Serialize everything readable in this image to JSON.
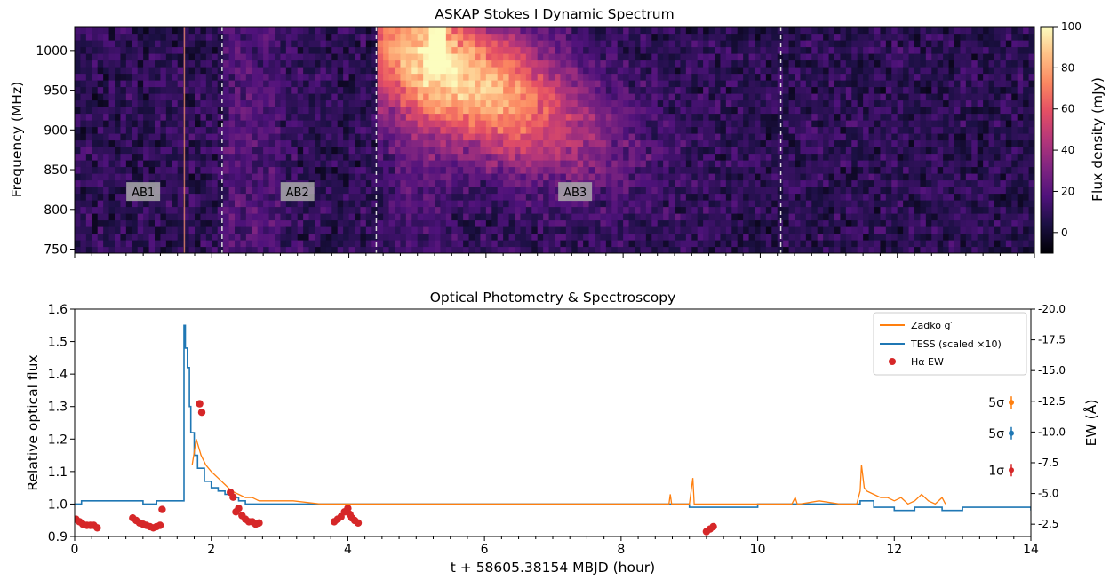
{
  "chart_data": [
    {
      "type": "heatmap",
      "title": "ASKAP Stokes I Dynamic Spectrum",
      "xlabel": "",
      "ylabel": "Frequency (MHz)",
      "xlim": [
        0,
        14
      ],
      "ylim": [
        745,
        1030
      ],
      "y_ticks": [
        750,
        800,
        850,
        900,
        950,
        1000
      ],
      "colorbar": {
        "label": "Flux density (mJy)",
        "range": [
          -10,
          100
        ],
        "ticks": [
          0,
          20,
          40,
          60,
          80,
          100
        ],
        "colormap": "magma"
      },
      "region_boundaries_hour": [
        2.15,
        4.4,
        10.3
      ],
      "bright_vertical_line_hour": 1.6,
      "region_labels": [
        {
          "label": "AB1",
          "x": 1.0,
          "freq": 822
        },
        {
          "label": "AB2",
          "x": 3.25,
          "freq": 822
        },
        {
          "label": "AB3",
          "x": 7.3,
          "freq": 822
        }
      ],
      "burst_description": "strong emission centered near 5.5 h and 1000 MHz, fading toward lower frequencies by 8-9 h"
    },
    {
      "type": "line",
      "title": "Optical Photometry & Spectroscopy",
      "xlabel": "t + 58605.38154 MBJD (hour)",
      "ylabel": "Relative optical flux",
      "y2label": "EW (Å)",
      "xlim": [
        0,
        14
      ],
      "ylim": [
        0.9,
        1.6
      ],
      "x_ticks": [
        0,
        2,
        4,
        6,
        8,
        10,
        12,
        14
      ],
      "y_ticks": [
        0.9,
        1.0,
        1.1,
        1.2,
        1.3,
        1.4,
        1.5,
        1.6
      ],
      "y2lim": [
        -1.5,
        -20.0
      ],
      "y2_ticks": [
        -2.5,
        -5.0,
        -7.5,
        -10.0,
        -12.5,
        -15.0,
        -17.5,
        -20.0
      ],
      "legend_position": "top-right",
      "series": [
        {
          "name": "Zadko g′",
          "color": "#ff7f0e",
          "style": "line",
          "x": [
            1.72,
            1.78,
            1.85,
            1.92,
            2.0,
            2.1,
            2.2,
            2.3,
            2.4,
            2.5,
            2.6,
            2.7,
            2.9,
            3.2,
            3.6,
            4.0,
            4.5,
            5.0,
            5.5,
            6.0,
            6.5,
            7.0,
            7.5,
            8.0,
            8.5,
            8.7,
            8.72,
            8.74,
            8.8,
            9.0,
            9.05,
            9.07,
            9.12,
            9.3,
            9.6,
            9.9,
            10.2,
            10.5,
            10.55,
            10.58,
            10.62,
            10.9,
            11.2,
            11.45,
            11.5,
            11.52,
            11.56,
            11.6,
            11.7,
            11.8,
            11.9,
            12.0,
            12.1,
            12.2,
            12.3,
            12.4,
            12.5,
            12.6,
            12.7,
            12.75
          ],
          "y": [
            1.12,
            1.2,
            1.15,
            1.12,
            1.1,
            1.08,
            1.06,
            1.04,
            1.03,
            1.02,
            1.02,
            1.01,
            1.01,
            1.01,
            1.0,
            1.0,
            1.0,
            1.0,
            1.0,
            1.0,
            1.0,
            1.0,
            1.0,
            1.0,
            1.0,
            1.0,
            1.03,
            1.0,
            1.0,
            1.0,
            1.08,
            1.0,
            1.0,
            1.0,
            1.0,
            1.0,
            1.0,
            1.0,
            1.02,
            1.0,
            1.0,
            1.01,
            1.0,
            1.0,
            1.04,
            1.12,
            1.05,
            1.04,
            1.03,
            1.02,
            1.02,
            1.01,
            1.02,
            1.0,
            1.01,
            1.03,
            1.01,
            1.0,
            1.02,
            1.0
          ]
        },
        {
          "name": "TESS (scaled ×10)",
          "color": "#1f77b4",
          "style": "step",
          "x": [
            0.0,
            0.1,
            0.3,
            0.5,
            0.8,
            1.0,
            1.2,
            1.4,
            1.58,
            1.6,
            1.62,
            1.65,
            1.68,
            1.7,
            1.75,
            1.8,
            1.9,
            2.0,
            2.1,
            2.2,
            2.3,
            2.4,
            2.5,
            2.6,
            2.8,
            3.0,
            3.5,
            4.0,
            5.0,
            6.0,
            7.0,
            8.0,
            9.0,
            10.0,
            11.0,
            11.5,
            11.7,
            12.0,
            12.3,
            12.7,
            13.0,
            13.5,
            14.0
          ],
          "y": [
            1.0,
            1.01,
            1.01,
            1.01,
            1.01,
            1.0,
            1.01,
            1.01,
            1.01,
            1.55,
            1.48,
            1.42,
            1.3,
            1.22,
            1.15,
            1.11,
            1.07,
            1.05,
            1.04,
            1.03,
            1.02,
            1.01,
            1.0,
            1.0,
            1.0,
            1.0,
            1.0,
            1.0,
            1.0,
            1.0,
            1.0,
            1.0,
            0.99,
            1.0,
            1.0,
            1.01,
            0.99,
            0.98,
            0.99,
            0.98,
            0.99,
            0.99,
            0.98
          ]
        },
        {
          "name": "Hα EW",
          "color": "#d62728",
          "style": "scatter",
          "axis": "right",
          "x": [
            0.02,
            0.07,
            0.12,
            0.18,
            0.23,
            0.28,
            0.33,
            0.85,
            0.9,
            0.95,
            1.0,
            1.05,
            1.1,
            1.15,
            1.2,
            1.25,
            1.28,
            1.83,
            1.86,
            2.28,
            2.32,
            2.36,
            2.4,
            2.45,
            2.5,
            2.55,
            2.6,
            2.65,
            2.7,
            3.8,
            3.85,
            3.9,
            3.95,
            4.0,
            4.03,
            4.06,
            4.1,
            4.15,
            9.25,
            9.3,
            9.35
          ],
          "y": [
            -2.9,
            -2.7,
            -2.5,
            -2.4,
            -2.4,
            -2.4,
            -2.2,
            -3.0,
            -2.8,
            -2.6,
            -2.5,
            -2.4,
            -2.3,
            -2.2,
            -2.3,
            -2.4,
            -3.7,
            -12.3,
            -11.6,
            -5.1,
            -4.7,
            -3.5,
            -3.8,
            -3.2,
            -2.9,
            -2.7,
            -2.7,
            -2.5,
            -2.6,
            -2.7,
            -2.9,
            -3.1,
            -3.5,
            -3.8,
            -3.3,
            -3.0,
            -2.8,
            -2.6,
            -1.9,
            -2.1,
            -2.3
          ]
        }
      ],
      "error_bar_annotations": [
        {
          "label": "5σ",
          "color": "#ff7f0e",
          "ew": -12.4
        },
        {
          "label": "5σ",
          "color": "#1f77b4",
          "ew": -9.9
        },
        {
          "label": "1σ",
          "color": "#d62728",
          "ew": -6.9
        }
      ]
    }
  ]
}
